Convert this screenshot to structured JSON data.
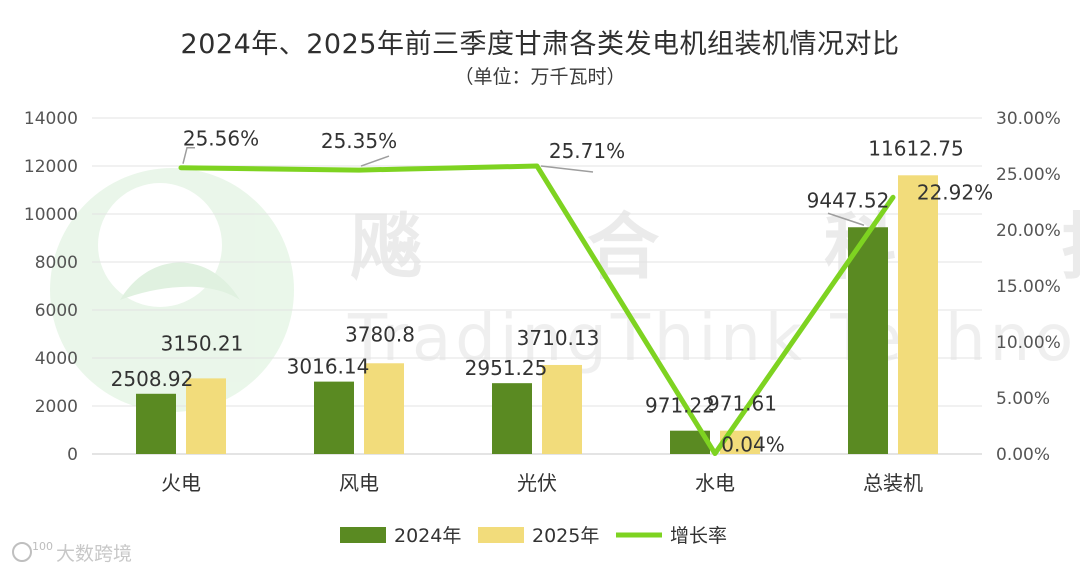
{
  "chart_data": {
    "type": "bar",
    "title": "2024年、2025年前三季度甘肃各类发电机组装机情况对比",
    "subtitle": "（单位：万千瓦时）",
    "categories": [
      "火电",
      "风电",
      "光伏",
      "水电",
      "总装机"
    ],
    "series": [
      {
        "name": "2024年",
        "type": "bar",
        "axis": "left",
        "color": "#5a8a22",
        "values": [
          2508.92,
          3016.14,
          2951.25,
          971.22,
          9447.52
        ],
        "labels": [
          "2508.92",
          "3016.14",
          "2951.25",
          "971.22",
          "9447.52"
        ]
      },
      {
        "name": "2025年",
        "type": "bar",
        "axis": "left",
        "color": "#f2dc7b",
        "values": [
          3150.21,
          3780.8,
          3710.13,
          971.61,
          11612.75
        ],
        "labels": [
          "3150.21",
          "3780.8",
          "3710.13",
          "971.61",
          "11612.75"
        ]
      },
      {
        "name": "增长率",
        "type": "line",
        "axis": "right",
        "color": "#7ed321",
        "values": [
          25.56,
          25.35,
          25.71,
          0.04,
          22.92
        ],
        "labels": [
          "25.56%",
          "25.35%",
          "25.71%",
          "0.04%",
          "22.92%"
        ]
      }
    ],
    "y_left": {
      "min": 0,
      "max": 14000,
      "ticks": [
        "0",
        "2000",
        "4000",
        "6000",
        "8000",
        "10000",
        "12000",
        "14000"
      ]
    },
    "y_right": {
      "min": 0,
      "max": 30,
      "ticks": [
        "0.00%",
        "5.00%",
        "10.00%",
        "15.00%",
        "20.00%",
        "25.00%",
        "30.00%"
      ]
    },
    "grid": true,
    "legend_position": "bottom"
  },
  "watermark": {
    "text_cn": "飚 合 科 技",
    "text_en": "TradingThink Technology",
    "corner_text": "大数跨境",
    "corner_badge": "100"
  }
}
